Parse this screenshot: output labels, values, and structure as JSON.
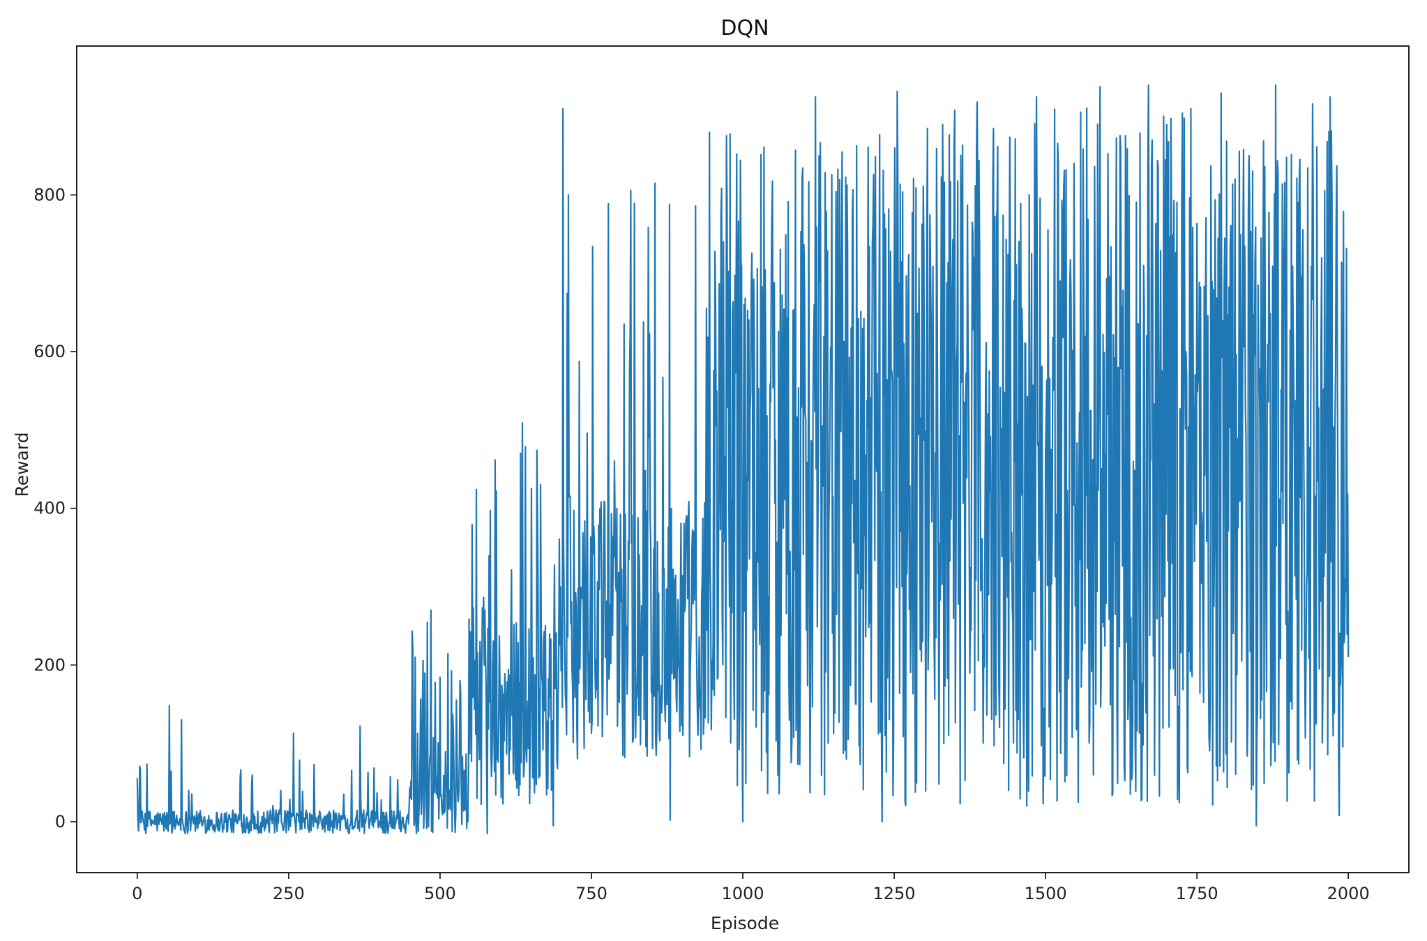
{
  "chart_data": {
    "type": "line",
    "title": "DQN",
    "xlabel": "Episode",
    "ylabel": "Reward",
    "xlim": [
      -100,
      2100
    ],
    "ylim": [
      -65,
      990
    ],
    "x_ticks": [
      0,
      250,
      500,
      750,
      1000,
      1250,
      1500,
      1750,
      2000
    ],
    "y_ticks": [
      0,
      200,
      400,
      600,
      800
    ],
    "grid": false,
    "legend": "none",
    "series": [
      {
        "color": "#1f77b4",
        "phases": [
          {
            "x_start": 0,
            "x_end": 450,
            "low": -15,
            "high": 15,
            "spike_prob": 0.08,
            "spike_max": 90
          },
          {
            "x_start": 450,
            "x_end": 550,
            "low": -15,
            "high": 90,
            "spike_prob": 0.15,
            "spike_max": 260
          },
          {
            "x_start": 550,
            "x_end": 700,
            "low": 20,
            "high": 260,
            "spike_prob": 0.12,
            "spike_max": 500
          },
          {
            "x_start": 700,
            "x_end": 950,
            "low": 80,
            "high": 420,
            "spike_prob": 0.1,
            "spike_max": 800
          },
          {
            "x_start": 950,
            "x_end": 1250,
            "low": 30,
            "high": 880,
            "spike_prob": 0.0,
            "spike_max": 920
          },
          {
            "x_start": 1250,
            "x_end": 2000,
            "low": 20,
            "high": 920,
            "spike_prob": 0.0,
            "spike_max": 930
          }
        ],
        "peaks": [
          {
            "x": 53,
            "y": 148
          },
          {
            "x": 73,
            "y": 130
          },
          {
            "x": 258,
            "y": 113
          },
          {
            "x": 368,
            "y": 122
          },
          {
            "x": 459,
            "y": 210
          },
          {
            "x": 485,
            "y": 270
          },
          {
            "x": 560,
            "y": 424
          },
          {
            "x": 593,
            "y": 422
          },
          {
            "x": 636,
            "y": 509
          },
          {
            "x": 660,
            "y": 474
          },
          {
            "x": 703,
            "y": 910
          },
          {
            "x": 712,
            "y": 800
          },
          {
            "x": 752,
            "y": 734
          },
          {
            "x": 815,
            "y": 806
          },
          {
            "x": 855,
            "y": 815
          },
          {
            "x": 945,
            "y": 880
          },
          {
            "x": 1120,
            "y": 925
          },
          {
            "x": 1255,
            "y": 932
          },
          {
            "x": 1485,
            "y": 925
          },
          {
            "x": 1590,
            "y": 938
          },
          {
            "x": 1670,
            "y": 940
          },
          {
            "x": 1790,
            "y": 930
          },
          {
            "x": 1880,
            "y": 940
          },
          {
            "x": 1970,
            "y": 925
          },
          {
            "x": 2000,
            "y": 905
          }
        ],
        "troughs": [
          {
            "x": 578,
            "y": -15
          },
          {
            "x": 687,
            "y": -5
          },
          {
            "x": 880,
            "y": 2
          },
          {
            "x": 1000,
            "y": 0
          },
          {
            "x": 1230,
            "y": 0
          },
          {
            "x": 1848,
            "y": -5
          },
          {
            "x": 1985,
            "y": 8
          }
        ],
        "end_point": {
          "x": 2000,
          "y": 210
        }
      }
    ]
  }
}
